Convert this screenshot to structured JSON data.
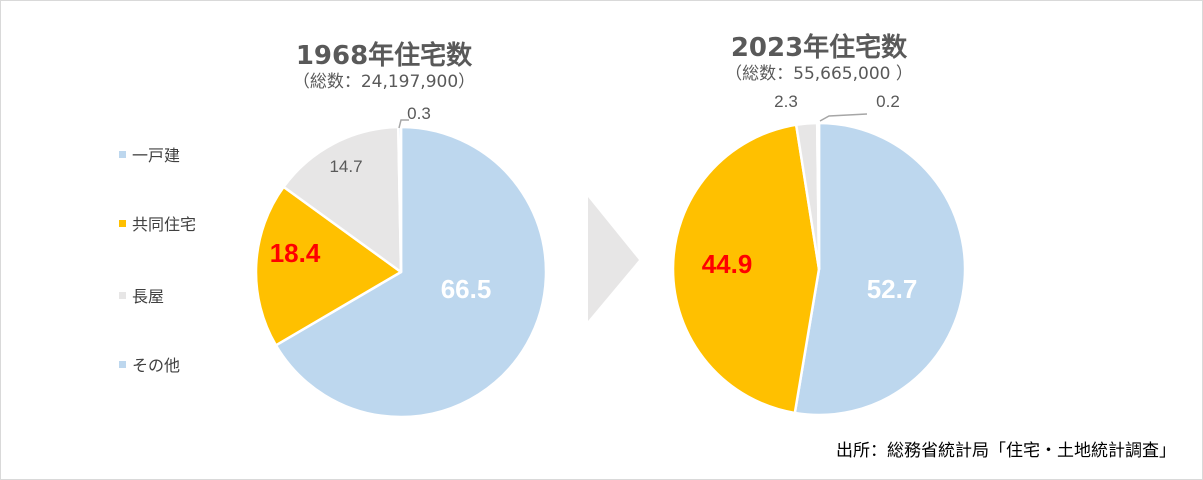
{
  "chart_data": [
    {
      "type": "pie",
      "title": "1968年住宅数",
      "subtitle": "（総数：24,197,900）",
      "categories": [
        "一戸建",
        "共同住宅",
        "長屋",
        "その他"
      ],
      "values": [
        66.5,
        18.4,
        14.7,
        0.3
      ],
      "data_labels": [
        "66.5",
        "18.4",
        "14.7",
        "0.3"
      ]
    },
    {
      "type": "pie",
      "title": "2023年住宅数",
      "subtitle": "（総数：55,665,000 ）",
      "categories": [
        "一戸建",
        "共同住宅",
        "長屋",
        "その他"
      ],
      "values": [
        52.7,
        44.9,
        2.3,
        0.2
      ],
      "data_labels": [
        "52.7",
        "44.9",
        "2.3",
        "0.2"
      ]
    }
  ],
  "legend": {
    "placement": "left",
    "items": [
      "一戸建",
      "共同住宅",
      "長屋",
      "その他"
    ]
  },
  "colors": {
    "一戸建": "#bdd7ee",
    "共同住宅": "#ffc000",
    "長屋": "#e7e6e6",
    "その他": "#bdd7ee",
    "arrow": "#e7e6e6",
    "label_white": "#ffffff",
    "label_red": "#ff0000",
    "label_gray": "#595959"
  },
  "source": "出所：総務省統計局「住宅・土地統計調査」"
}
